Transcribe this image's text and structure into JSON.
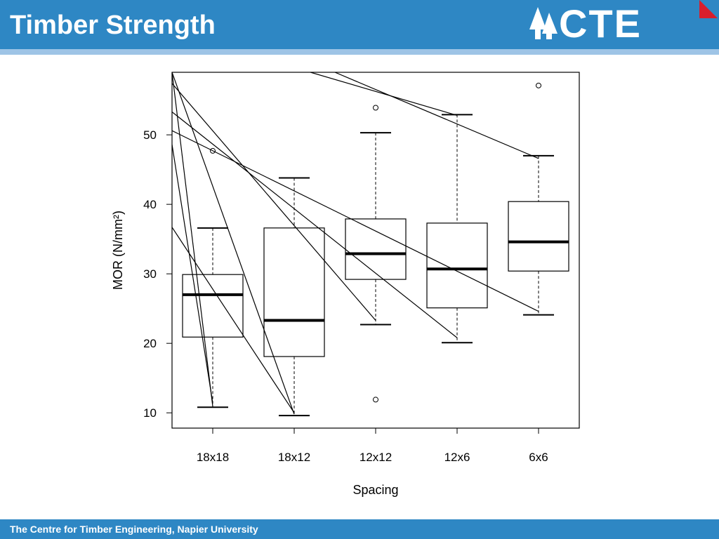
{
  "slide": {
    "title": "Timber Strength",
    "logo_text": "CTE",
    "footer": "The Centre for Timber Engineering, Napier University"
  },
  "colors": {
    "header_bar": "#2e87c4",
    "header_stripe": "#9ec4e6",
    "logo_accent": "#d81e2c",
    "plot_ink": "#000000"
  },
  "chart_data": {
    "type": "box",
    "xlabel": "Spacing",
    "ylabel": "MOR (N/mm²)",
    "categories": [
      "18x18",
      "18x12",
      "12x12",
      "12x6",
      "6x6"
    ],
    "yticks": [
      10,
      20,
      30,
      40,
      50
    ],
    "ylim": [
      7.8,
      59
    ],
    "boxes": [
      {
        "name": "18x18",
        "whisker_low": 10.8,
        "q1": 20.9,
        "median": 27.0,
        "q3": 29.9,
        "whisker_high": 36.6,
        "outliers": [
          47.7
        ]
      },
      {
        "name": "18x12",
        "whisker_low": 9.6,
        "q1": 18.1,
        "median": 23.3,
        "q3": 36.6,
        "whisker_high": 43.8,
        "outliers": []
      },
      {
        "name": "12x12",
        "whisker_low": 22.7,
        "q1": 29.2,
        "median": 32.9,
        "q3": 37.9,
        "whisker_high": 50.3,
        "outliers": [
          53.9,
          11.9
        ]
      },
      {
        "name": "12x6",
        "whisker_low": 20.1,
        "q1": 25.1,
        "median": 30.7,
        "q3": 37.3,
        "whisker_high": 52.9,
        "outliers": []
      },
      {
        "name": "6x6",
        "whisker_low": 24.1,
        "q1": 30.4,
        "median": 34.6,
        "q3": 40.4,
        "whisker_high": 47.0,
        "outliers": [
          57.1
        ]
      }
    ],
    "overlay_lines": [
      {
        "from": [
          0.5,
          59.0
        ],
        "to": [
          1.0,
          10.9
        ]
      },
      {
        "from": [
          0.5,
          59.0
        ],
        "to": [
          2.0,
          9.8
        ]
      },
      {
        "from": [
          0.5,
          57.4
        ],
        "to": [
          3.0,
          23.3
        ]
      },
      {
        "from": [
          0.5,
          53.3
        ],
        "to": [
          4.0,
          20.8
        ]
      },
      {
        "from": [
          0.5,
          50.6
        ],
        "to": [
          5.0,
          24.6
        ]
      },
      {
        "from": [
          0.5,
          48.6
        ],
        "to": [
          1.0,
          11.4
        ]
      },
      {
        "from": [
          0.5,
          36.7
        ],
        "to": [
          2.0,
          10.0
        ]
      },
      {
        "from": [
          2.2,
          59.0
        ],
        "to": [
          4.0,
          52.8
        ]
      },
      {
        "from": [
          2.5,
          59.0
        ],
        "to": [
          5.0,
          46.6
        ]
      }
    ]
  }
}
